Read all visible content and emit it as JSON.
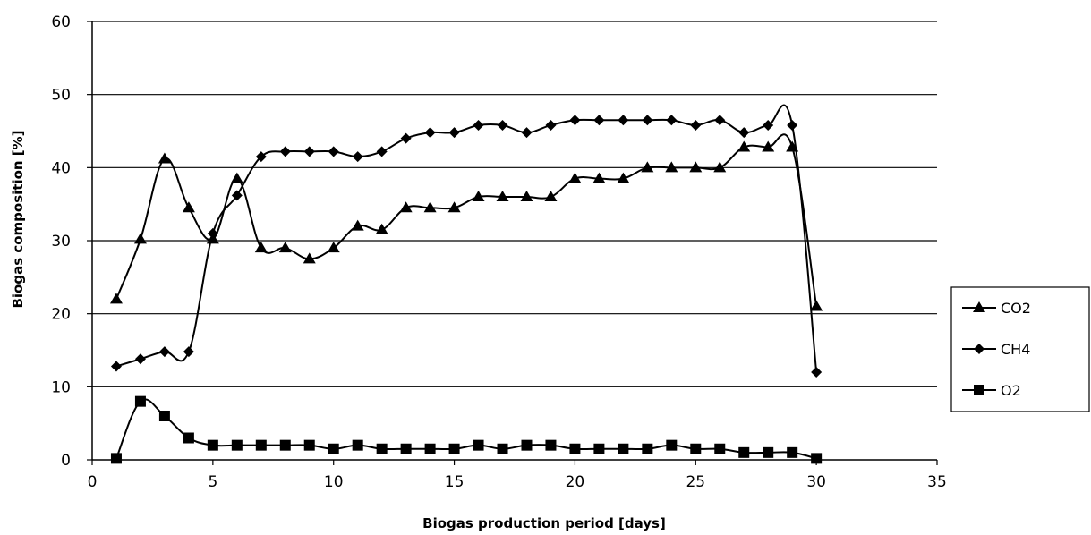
{
  "chart_data": {
    "type": "line",
    "title": "",
    "xlabel": "Biogas production period [days]",
    "ylabel": "Biogas composition [%]",
    "xlim": [
      0,
      35
    ],
    "ylim": [
      0,
      60
    ],
    "xticks": [
      0,
      5,
      10,
      15,
      20,
      25,
      30,
      35
    ],
    "yticks": [
      0,
      10,
      20,
      30,
      40,
      50,
      60
    ],
    "grid": "horizontal",
    "legend_position": "right",
    "line_color": "#000000",
    "x": [
      1,
      2,
      3,
      4,
      5,
      6,
      7,
      8,
      9,
      10,
      11,
      12,
      13,
      14,
      15,
      16,
      17,
      18,
      19,
      20,
      21,
      22,
      23,
      24,
      25,
      26,
      27,
      28,
      29,
      30
    ],
    "series": [
      {
        "name": "CO2",
        "marker": "triangle",
        "values": [
          22,
          30.2,
          41.2,
          34.5,
          30.2,
          38.5,
          29,
          29,
          27.5,
          29,
          32,
          31.5,
          34.5,
          34.5,
          34.5,
          36,
          36,
          36,
          36,
          38.5,
          38.5,
          38.5,
          40,
          40,
          40,
          40,
          42.8,
          42.8,
          42.8,
          21
        ]
      },
      {
        "name": "CH4",
        "marker": "diamond",
        "values": [
          12.8,
          13.8,
          14.8,
          14.8,
          31,
          36.2,
          41.5,
          42.2,
          42.2,
          42.2,
          41.5,
          42.2,
          44,
          44.8,
          44.8,
          45.8,
          45.8,
          44.8,
          45.8,
          46.5,
          46.5,
          46.5,
          46.5,
          46.5,
          45.8,
          46.5,
          44.8,
          45.8,
          45.8,
          12
        ]
      },
      {
        "name": "O2",
        "marker": "square",
        "values": [
          0.2,
          8,
          6,
          3,
          2,
          2,
          2,
          2,
          2,
          1.5,
          2,
          1.5,
          1.5,
          1.5,
          1.5,
          2,
          1.5,
          2,
          2,
          1.5,
          1.5,
          1.5,
          1.5,
          2,
          1.5,
          1.5,
          1,
          1,
          1,
          0.2
        ]
      }
    ]
  }
}
